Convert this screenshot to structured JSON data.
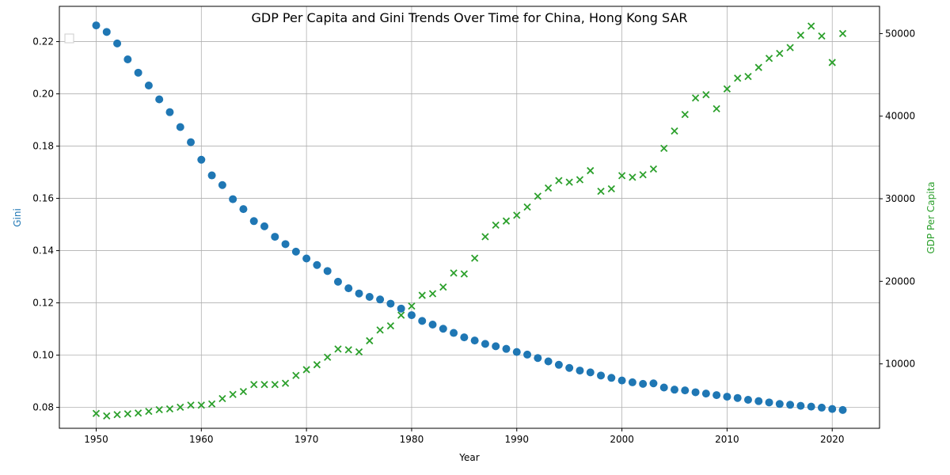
{
  "chart_data": {
    "type": "scatter",
    "title": "GDP Per Capita and Gini Trends Over Time for China, Hong Kong SAR",
    "xlabel": "Year",
    "ylabel_left": "Gini",
    "ylabel_right": "GDP Per Capita",
    "xlim": [
      1946.5,
      2024.5
    ],
    "ylim_left": [
      0.072,
      0.2335
    ],
    "ylim_right": [
      2200,
      53300
    ],
    "x_ticks": [
      1950,
      1960,
      1970,
      1980,
      1990,
      2000,
      2010,
      2020
    ],
    "y_left_ticks": [
      0.08,
      0.1,
      0.12,
      0.14,
      0.16,
      0.18,
      0.2,
      0.22
    ],
    "y_left_tick_labels": [
      "0.08",
      "0.10",
      "0.12",
      "0.14",
      "0.16",
      "0.18",
      "0.20",
      "0.22"
    ],
    "y_right_ticks": [
      10000,
      20000,
      30000,
      40000,
      50000
    ],
    "y_right_tick_labels": [
      "10000",
      "20000",
      "30000",
      "40000",
      "50000"
    ],
    "grid": true,
    "legend": "top-left (empty)",
    "colors": {
      "gini": "#1f77b4",
      "gdp": "#2ca02c"
    },
    "series": [
      {
        "axis": "left",
        "marker": "circle",
        "color": "#1f77b4",
        "x": [
          1950,
          1951,
          1952,
          1953,
          1954,
          1955,
          1956,
          1957,
          1958,
          1959,
          1960,
          1961,
          1962,
          1963,
          1964,
          1965,
          1966,
          1967,
          1968,
          1969,
          1970,
          1971,
          1972,
          1973,
          1974,
          1975,
          1976,
          1977,
          1978,
          1979,
          1980,
          1981,
          1982,
          1983,
          1984,
          1985,
          1986,
          1987,
          1988,
          1989,
          1990,
          1991,
          1992,
          1993,
          1994,
          1995,
          1996,
          1997,
          1998,
          1999,
          2000,
          2001,
          2002,
          2003,
          2004,
          2005,
          2006,
          2007,
          2008,
          2009,
          2010,
          2011,
          2012,
          2013,
          2014,
          2015,
          2016,
          2017,
          2018,
          2019,
          2020,
          2021
        ],
        "values": [
          0.2262,
          0.2237,
          0.2193,
          0.2132,
          0.2081,
          0.2032,
          0.1979,
          0.193,
          0.1873,
          0.1815,
          0.1748,
          0.1688,
          0.1651,
          0.1597,
          0.1559,
          0.1513,
          0.1493,
          0.1453,
          0.1425,
          0.1396,
          0.137,
          0.1345,
          0.1322,
          0.1281,
          0.1256,
          0.1236,
          0.1223,
          0.1213,
          0.1197,
          0.1178,
          0.1153,
          0.1131,
          0.1117,
          0.1101,
          0.1085,
          0.1068,
          0.1056,
          0.1043,
          0.1034,
          0.1024,
          0.1012,
          0.1002,
          0.0989,
          0.0976,
          0.0963,
          0.0951,
          0.0941,
          0.0934,
          0.0922,
          0.0913,
          0.0903,
          0.0896,
          0.089,
          0.0892,
          0.0876,
          0.0868,
          0.0865,
          0.0858,
          0.0853,
          0.0847,
          0.0841,
          0.0836,
          0.0829,
          0.0824,
          0.0819,
          0.0813,
          0.081,
          0.0806,
          0.0803,
          0.0799,
          0.0794,
          0.079
        ]
      },
      {
        "axis": "right",
        "marker": "x",
        "color": "#2ca02c",
        "x": [
          1950,
          1951,
          1952,
          1953,
          1954,
          1955,
          1956,
          1957,
          1958,
          1959,
          1960,
          1961,
          1962,
          1963,
          1964,
          1965,
          1966,
          1967,
          1968,
          1969,
          1970,
          1971,
          1972,
          1973,
          1974,
          1975,
          1976,
          1977,
          1978,
          1979,
          1980,
          1981,
          1982,
          1983,
          1984,
          1985,
          1986,
          1987,
          1988,
          1989,
          1990,
          1991,
          1992,
          1993,
          1994,
          1995,
          1996,
          1997,
          1998,
          1999,
          2000,
          2001,
          2002,
          2003,
          2004,
          2005,
          2006,
          2007,
          2008,
          2009,
          2010,
          2011,
          2012,
          2013,
          2014,
          2015,
          2016,
          2017,
          2018,
          2019,
          2020,
          2021
        ],
        "values": [
          4000,
          3700,
          3850,
          3950,
          4050,
          4250,
          4450,
          4550,
          4750,
          5000,
          5000,
          5150,
          5800,
          6300,
          6650,
          7500,
          7500,
          7500,
          7650,
          8600,
          9300,
          9900,
          10800,
          11800,
          11700,
          11450,
          12800,
          14100,
          14600,
          15900,
          17000,
          18300,
          18500,
          19300,
          21000,
          20900,
          22800,
          25400,
          26800,
          27300,
          28000,
          29000,
          30300,
          31300,
          32200,
          32000,
          32300,
          33400,
          30900,
          31200,
          32800,
          32600,
          32900,
          33600,
          36100,
          38200,
          40200,
          42200,
          42600,
          40900,
          43300,
          44600,
          44800,
          45900,
          47000,
          47600,
          48300,
          49800,
          50900,
          49700,
          46500,
          50000
        ]
      }
    ]
  }
}
